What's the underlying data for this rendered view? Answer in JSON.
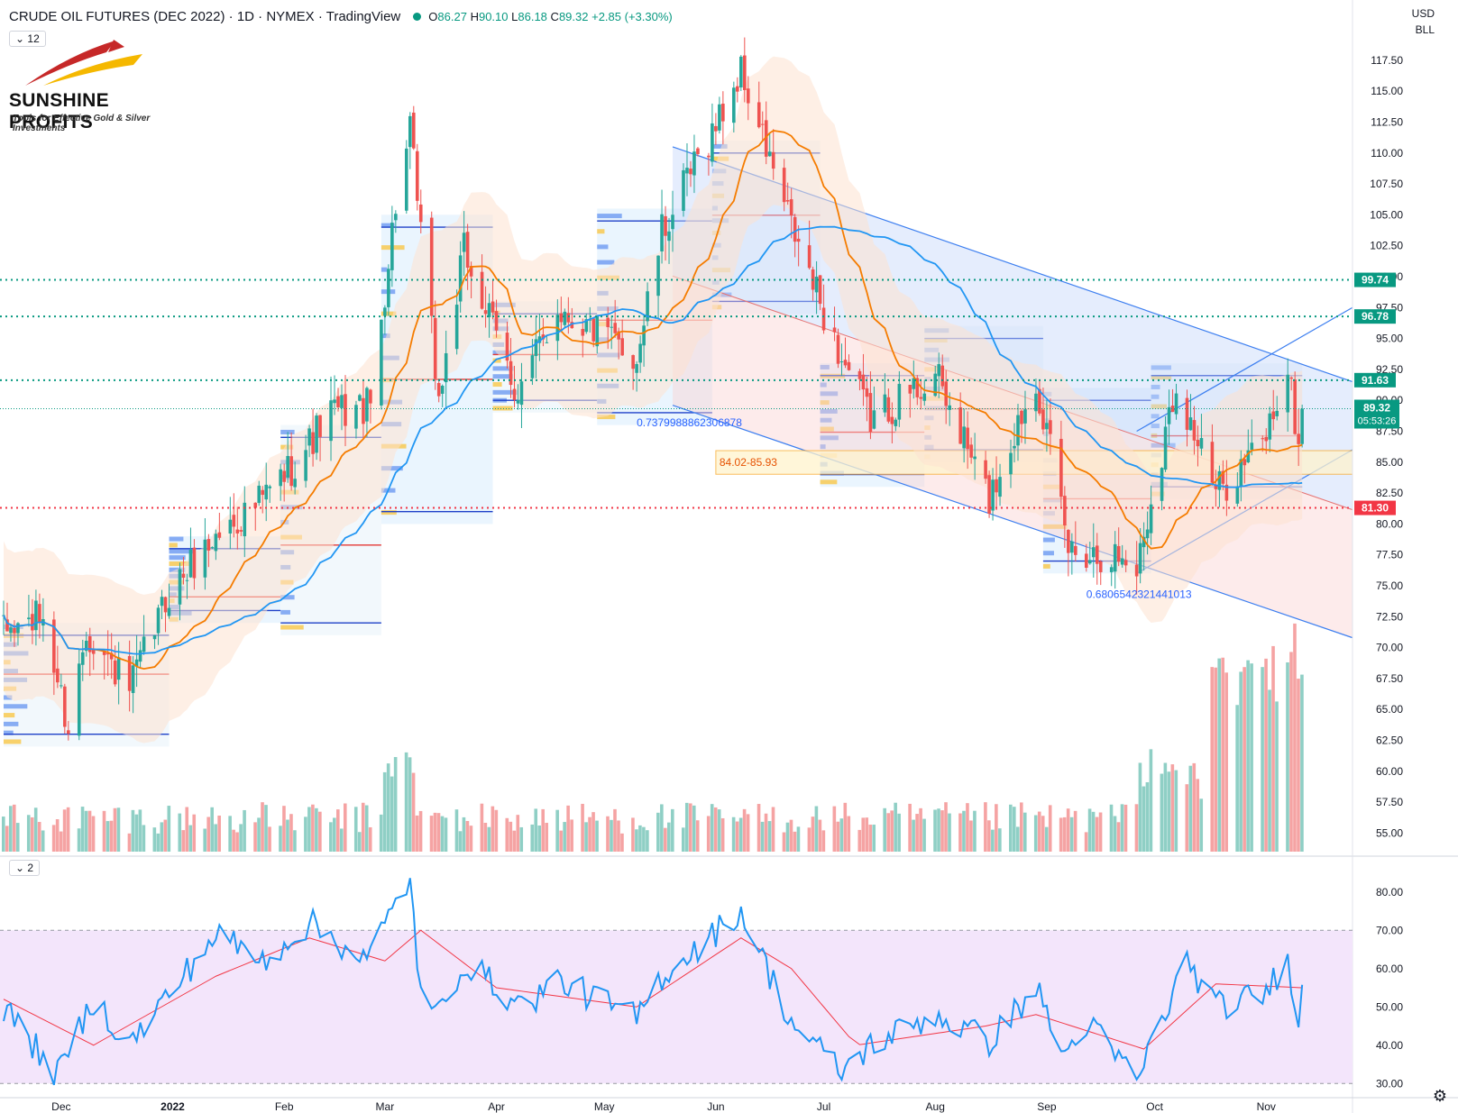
{
  "header": {
    "symbol": "CRUDE OIL FUTURES (DEC 2022) · 1D · NYMEX · TradingView",
    "o_label": "O",
    "o": "86.27",
    "h_label": "H",
    "h": "90.10",
    "l_label": "L",
    "l": "86.18",
    "c_label": "C",
    "c": "89.32",
    "change": "+2.85 (+3.30%)"
  },
  "collapse_main": "12",
  "collapse_rsi": "2",
  "currency": "USD",
  "unit": "BLL",
  "logo": {
    "brand": "SUNSHINE PROFITS",
    "tagline": "Tools for Effective Gold & Silver Investments"
  },
  "icons": {
    "settings": "gear-icon",
    "logo_mark": "swoosh-icon"
  },
  "colors": {
    "up": "#26a69a",
    "down": "#ef5350",
    "ma_fast": "#f57c00",
    "ma_slow": "#2196f3",
    "channel": "#3d7ff0",
    "support": "#089981",
    "resistance": "#f23645",
    "rsi": "#2196f3",
    "rsi_ma": "#f23645",
    "rsi_band": "#f3e5fb"
  },
  "chart_data": [
    {
      "type": "candlestick",
      "title": "CRUDE OIL FUTURES (DEC 2022)",
      "x_axis": [
        "Dec",
        "2022",
        "Feb",
        "Mar",
        "Apr",
        "May",
        "Jun",
        "Jul",
        "Aug",
        "Sep",
        "Oct",
        "Nov"
      ],
      "y_ticks": [
        "55.00",
        "57.50",
        "60.00",
        "62.50",
        "65.00",
        "67.50",
        "70.00",
        "72.50",
        "75.00",
        "77.50",
        "80.00",
        "82.50",
        "85.00",
        "87.50",
        "90.00",
        "92.50",
        "95.00",
        "97.50",
        "100.00",
        "102.50",
        "105.00",
        "107.50",
        "110.00",
        "112.50",
        "115.00",
        "117.50"
      ],
      "ylim": [
        53.5,
        118
      ],
      "anchors": [
        {
          "m": "2021-11-15",
          "p": 71.2
        },
        {
          "m": "2021-11-26",
          "p": 72.5
        },
        {
          "m": "2021-12-01",
          "p": 66.0
        },
        {
          "m": "2021-12-03",
          "p": 63.5
        },
        {
          "m": "2021-12-08",
          "p": 71.5
        },
        {
          "m": "2021-12-14",
          "p": 69.0
        },
        {
          "m": "2021-12-20",
          "p": 66.5
        },
        {
          "m": "2021-12-31",
          "p": 74.5
        },
        {
          "m": "2022-01-13",
          "p": 79.0
        },
        {
          "m": "2022-01-26",
          "p": 82.0
        },
        {
          "m": "2022-02-04",
          "p": 85.0
        },
        {
          "m": "2022-02-14",
          "p": 89.0
        },
        {
          "m": "2022-02-25",
          "p": 89.5
        },
        {
          "m": "2022-03-04",
          "p": 106.0
        },
        {
          "m": "2022-03-08",
          "p": 111.5
        },
        {
          "m": "2022-03-16",
          "p": 90.0
        },
        {
          "m": "2022-03-23",
          "p": 102.0
        },
        {
          "m": "2022-04-07",
          "p": 90.5
        },
        {
          "m": "2022-04-18",
          "p": 97.5
        },
        {
          "m": "2022-05-10",
          "p": 93.5
        },
        {
          "m": "2022-05-17",
          "p": 103.5
        },
        {
          "m": "2022-06-08",
          "p": 116.5
        },
        {
          "m": "2022-06-22",
          "p": 104.0
        },
        {
          "m": "2022-07-05",
          "p": 94.0
        },
        {
          "m": "2022-07-14",
          "p": 88.5
        },
        {
          "m": "2022-08-01",
          "p": 92.0
        },
        {
          "m": "2022-08-16",
          "p": 82.0
        },
        {
          "m": "2022-08-29",
          "p": 92.0
        },
        {
          "m": "2022-09-07",
          "p": 78.0
        },
        {
          "m": "2022-09-20",
          "p": 77.5
        },
        {
          "m": "2022-09-26",
          "p": 76.5
        },
        {
          "m": "2022-10-07",
          "p": 91.5
        },
        {
          "m": "2022-10-18",
          "p": 82.5
        },
        {
          "m": "2022-10-31",
          "p": 86.5
        },
        {
          "m": "2022-11-07",
          "p": 92.5
        },
        {
          "m": "2022-11-10",
          "p": 86.3
        },
        {
          "m": "2022-11-11",
          "p": 89.32
        }
      ],
      "x_range": [
        "2021-11-15",
        "2022-11-11"
      ],
      "moving_averages": [
        {
          "period": 20,
          "color": "#f57c00"
        },
        {
          "period": 50,
          "color": "#2196f3"
        }
      ],
      "horizontal_levels": [
        {
          "price": 99.74,
          "label": "99.74",
          "color": "#089981",
          "style": "dotted"
        },
        {
          "price": 96.78,
          "label": "96.78",
          "color": "#089981",
          "style": "dotted"
        },
        {
          "price": 91.63,
          "label": "91.63",
          "color": "#089981",
          "style": "dotted"
        },
        {
          "price": 81.3,
          "label": "81.30",
          "color": "#f23645",
          "style": "dotted"
        }
      ],
      "last_price": {
        "value": "89.32",
        "countdown": "05:53:26"
      },
      "zone": {
        "label": "84.02-85.93",
        "low": 84.02,
        "high": 85.93,
        "from": "2022-06-01"
      },
      "annotations": [
        {
          "text": "0.7379988862306878",
          "date": "2022-05-10",
          "price": 87.9
        },
        {
          "text": "0.6806542321441013",
          "date": "2022-09-12",
          "price": 74.0
        }
      ],
      "channels": [
        {
          "from": "2022-05-20",
          "from_price": 110.5,
          "to": "2022-11-25",
          "to_price": 91.5,
          "lower_from_price": 89.6,
          "lower_to_price": 70.8
        },
        {
          "from": "2022-09-26",
          "from_price": 76.0,
          "to": "2022-11-25",
          "to_price": 86.0,
          "upper_from_price": 87.5,
          "upper_to_price": 97.5
        }
      ],
      "volume_overlay": true,
      "ylabel": ""
    },
    {
      "type": "line",
      "title": "",
      "name": "RSI",
      "y_ticks": [
        "30.00",
        "40.00",
        "50.00",
        "60.00",
        "70.00",
        "80.00"
      ],
      "ylim": [
        27,
        87
      ],
      "band": [
        30,
        70
      ],
      "anchors": [
        {
          "m": "2021-11-15",
          "v": 50
        },
        {
          "m": "2021-11-30",
          "v": 32
        },
        {
          "m": "2021-12-10",
          "v": 52
        },
        {
          "m": "2021-12-20",
          "v": 40
        },
        {
          "m": "2022-01-13",
          "v": 69
        },
        {
          "m": "2022-01-26",
          "v": 62
        },
        {
          "m": "2022-02-08",
          "v": 72
        },
        {
          "m": "2022-02-24",
          "v": 62
        },
        {
          "m": "2022-03-08",
          "v": 84
        },
        {
          "m": "2022-03-11",
          "v": 52
        },
        {
          "m": "2022-03-16",
          "v": 48
        },
        {
          "m": "2022-03-23",
          "v": 62
        },
        {
          "m": "2022-04-08",
          "v": 50
        },
        {
          "m": "2022-04-18",
          "v": 57
        },
        {
          "m": "2022-05-10",
          "v": 47
        },
        {
          "m": "2022-05-17",
          "v": 58
        },
        {
          "m": "2022-06-08",
          "v": 75
        },
        {
          "m": "2022-06-22",
          "v": 46
        },
        {
          "m": "2022-07-06",
          "v": 33
        },
        {
          "m": "2022-07-14",
          "v": 40
        },
        {
          "m": "2022-08-01",
          "v": 48
        },
        {
          "m": "2022-08-16",
          "v": 41
        },
        {
          "m": "2022-08-29",
          "v": 55
        },
        {
          "m": "2022-09-06",
          "v": 37
        },
        {
          "m": "2022-09-12",
          "v": 46
        },
        {
          "m": "2022-09-26",
          "v": 31
        },
        {
          "m": "2022-10-10",
          "v": 62
        },
        {
          "m": "2022-10-18",
          "v": 50
        },
        {
          "m": "2022-10-31",
          "v": 53
        },
        {
          "m": "2022-11-07",
          "v": 62
        },
        {
          "m": "2022-11-10",
          "v": 48
        },
        {
          "m": "2022-11-11",
          "v": 54
        }
      ],
      "ma_anchors": [
        {
          "m": "2021-11-15",
          "v": 52
        },
        {
          "m": "2021-12-10",
          "v": 40
        },
        {
          "m": "2022-01-13",
          "v": 58
        },
        {
          "m": "2022-02-08",
          "v": 68
        },
        {
          "m": "2022-03-01",
          "v": 62
        },
        {
          "m": "2022-03-11",
          "v": 70
        },
        {
          "m": "2022-04-01",
          "v": 55
        },
        {
          "m": "2022-05-10",
          "v": 50
        },
        {
          "m": "2022-06-08",
          "v": 68
        },
        {
          "m": "2022-06-22",
          "v": 60
        },
        {
          "m": "2022-07-10",
          "v": 40
        },
        {
          "m": "2022-08-15",
          "v": 45
        },
        {
          "m": "2022-08-29",
          "v": 48
        },
        {
          "m": "2022-09-28",
          "v": 39
        },
        {
          "m": "2022-10-18",
          "v": 56
        },
        {
          "m": "2022-11-11",
          "v": 55
        }
      ]
    }
  ]
}
